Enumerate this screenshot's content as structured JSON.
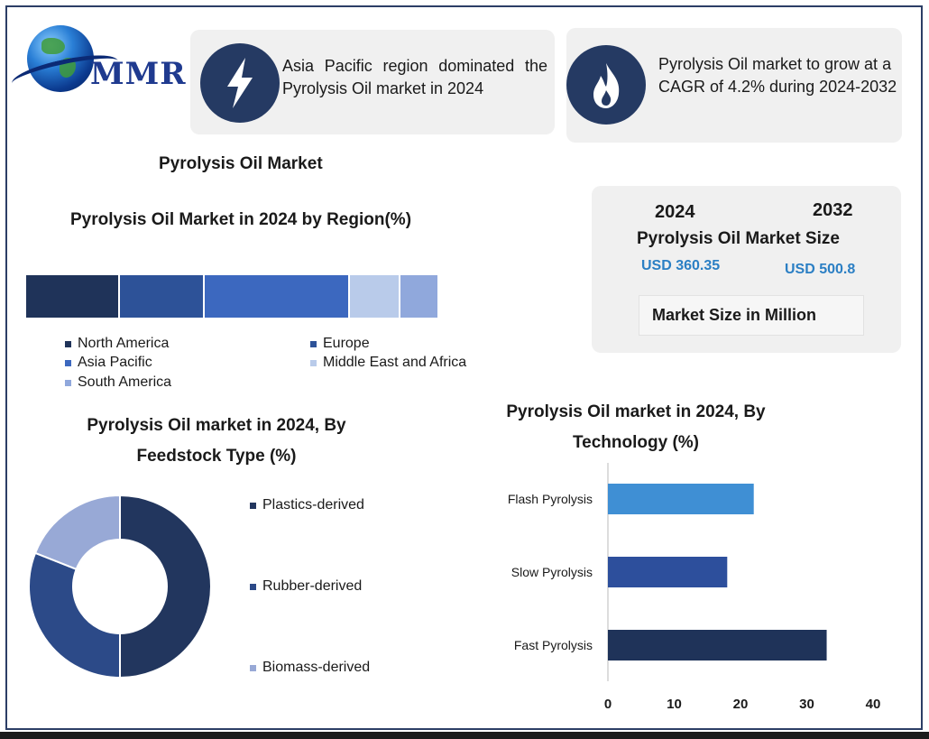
{
  "logo": {
    "text": "MMR"
  },
  "cards": [
    {
      "icon": "lightning-icon",
      "text": "Asia Pacific region dominated the Pyrolysis Oil market in 2024"
    },
    {
      "icon": "flame-icon",
      "text": "Pyrolysis Oil market to grow at a CAGR of 4.2% during 2024-2032"
    }
  ],
  "title": "Pyrolysis Oil Market",
  "market_size": {
    "year_start": "2024",
    "year_end": "2032",
    "title": "Pyrolysis Oil Market Size",
    "value_start": "USD 360.35",
    "value_end": "USD 500.8",
    "unit": "Market Size in Million"
  },
  "colors": {
    "north_america": "#1f3359",
    "europe": "#2d5298",
    "asia_pacific": "#3c68bf",
    "middle_east_africa": "#b9cbea",
    "south_america": "#90a8dc",
    "plastics": "#22365e",
    "rubber": "#2c4a88",
    "biomass": "#98a9d6",
    "flash": "#3f8fd4",
    "slow": "#2d4f9c",
    "fast": "#1f3359"
  },
  "chart_data": [
    {
      "type": "bar",
      "orientation": "horizontal-stacked",
      "title": "Pyrolysis Oil Market in 2024 by Region(%)",
      "categories": [
        "North America",
        "Europe",
        "Asia Pacific",
        "Middle East and Africa",
        "South America"
      ],
      "values": [
        22,
        20,
        34,
        12,
        9
      ],
      "legend": [
        "North America",
        "Europe",
        "Asia Pacific",
        "Middle East and Africa",
        "South America"
      ]
    },
    {
      "type": "pie",
      "variant": "donut",
      "title": "Pyrolysis Oil market in 2024, By Feedstock Type (%)",
      "categories": [
        "Plastics-derived",
        "Rubber-derived",
        "Biomass-derived"
      ],
      "values": [
        50,
        31,
        19
      ]
    },
    {
      "type": "bar",
      "orientation": "horizontal",
      "title": "Pyrolysis Oil market in 2024, By Technology (%)",
      "categories": [
        "Flash Pyrolysis",
        "Slow Pyrolysis",
        "Fast Pyrolysis"
      ],
      "values": [
        22,
        18,
        33
      ],
      "xlim": [
        0,
        40
      ],
      "xticks": [
        "0",
        "10",
        "20",
        "30",
        "40"
      ]
    }
  ]
}
